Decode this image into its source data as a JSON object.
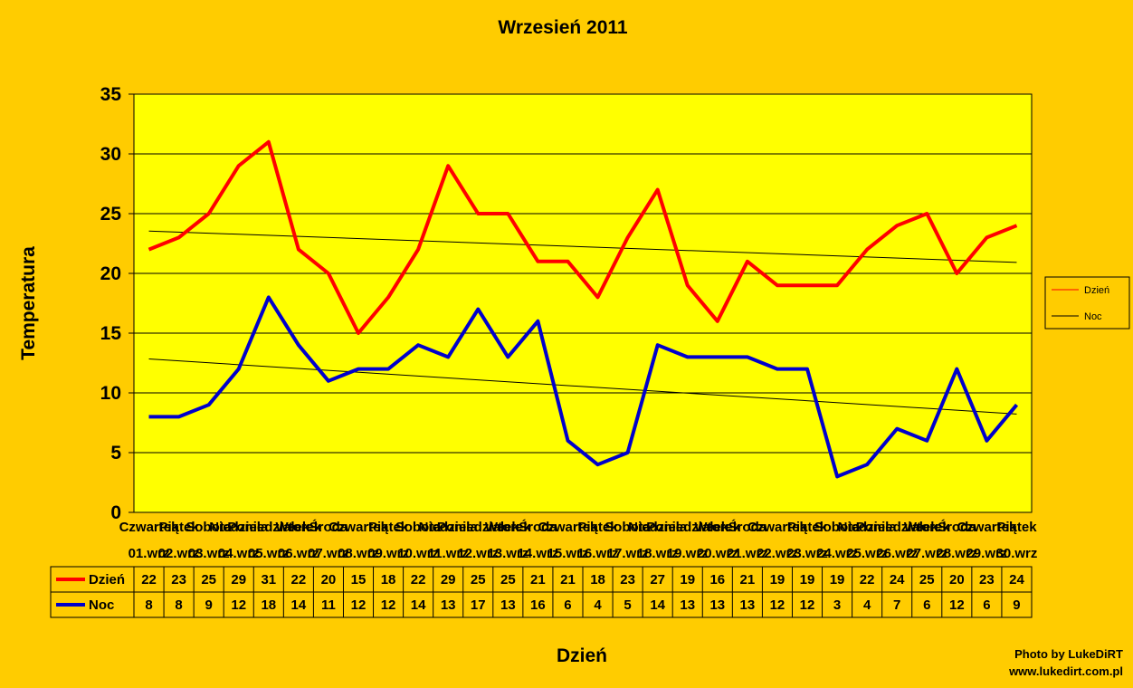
{
  "chart_data": {
    "type": "line",
    "title": "Wrzesień 2011",
    "xlabel": "Dzień",
    "ylabel": "Temperatura",
    "ylim": [
      0,
      35
    ],
    "yticks": [
      0,
      5,
      10,
      15,
      20,
      25,
      30,
      35
    ],
    "grid": true,
    "legend_position": "right",
    "categories": [
      [
        "Czwartek",
        "01.wrz"
      ],
      [
        "Piątek",
        "02.wrz"
      ],
      [
        "Sobota",
        "03.wrz"
      ],
      [
        "Niedziela",
        "04.wrz"
      ],
      [
        "Poniedziałek",
        "05.wrz"
      ],
      [
        "Wtorek",
        "06.wrz"
      ],
      [
        "Środa",
        "07.wrz"
      ],
      [
        "Czwartek",
        "08.wrz"
      ],
      [
        "Piątek",
        "09.wrz"
      ],
      [
        "Sobota",
        "10.wrz"
      ],
      [
        "Niedziela",
        "11.wrz"
      ],
      [
        "Poniedziałek",
        "12.wrz"
      ],
      [
        "Wtorek",
        "13.wrz"
      ],
      [
        "Środa",
        "14.wrz"
      ],
      [
        "Czwartek",
        "15.wrz"
      ],
      [
        "Piątek",
        "16.wrz"
      ],
      [
        "Sobota",
        "17.wrz"
      ],
      [
        "Niedziela",
        "18.wrz"
      ],
      [
        "Poniedziałek",
        "19.wrz"
      ],
      [
        "Wtorek",
        "20.wrz"
      ],
      [
        "Środa",
        "21.wrz"
      ],
      [
        "Czwartek",
        "22.wrz"
      ],
      [
        "Piątek",
        "23.wrz"
      ],
      [
        "Sobota",
        "24.wrz"
      ],
      [
        "Niedziela",
        "25.wrz"
      ],
      [
        "Poniedziałek",
        "26.wrz"
      ],
      [
        "Wtorek",
        "27.wrz"
      ],
      [
        "Środa",
        "28.wrz"
      ],
      [
        "Czwartek",
        "29.wrz"
      ],
      [
        "Piątek",
        "30.wrz"
      ]
    ],
    "series": [
      {
        "name": "Dzień",
        "color": "#FF0000",
        "values": [
          22,
          23,
          25,
          29,
          31,
          22,
          20,
          15,
          18,
          22,
          29,
          25,
          25,
          21,
          21,
          18,
          23,
          27,
          19,
          16,
          21,
          19,
          19,
          19,
          22,
          24,
          25,
          20,
          23,
          24
        ]
      },
      {
        "name": "Noc",
        "color": "#0000CC",
        "values": [
          8,
          8,
          9,
          12,
          18,
          14,
          11,
          12,
          12,
          14,
          13,
          17,
          13,
          16,
          6,
          4,
          5,
          14,
          13,
          13,
          13,
          12,
          12,
          3,
          4,
          7,
          6,
          12,
          6,
          9
        ]
      }
    ],
    "trendlines": true,
    "plot_background": "#FFFF00",
    "page_background": "#FFCC00"
  },
  "credit": {
    "line1": "Photo by LukeDiRT",
    "line2": "www.lukedirt.com.pl"
  }
}
